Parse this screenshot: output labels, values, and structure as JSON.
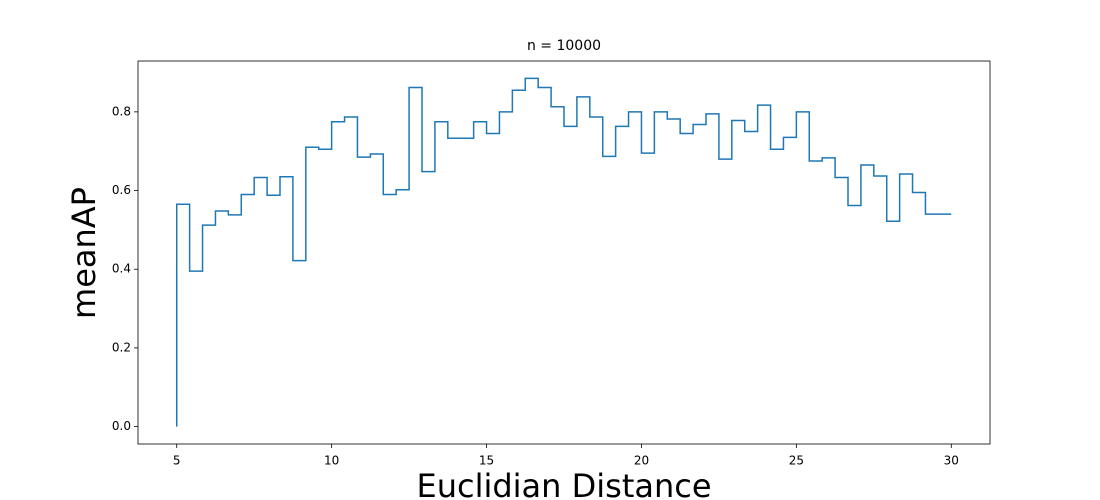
{
  "chart_data": {
    "type": "step",
    "where": "pre",
    "title": "n = 10000",
    "x_label": "Euclidian Distance",
    "y_label": "meanAP",
    "color": "#1f77b4",
    "x": [
      5,
      5.4167,
      5.8333,
      6.25,
      6.6667,
      7.0833,
      7.5,
      7.9167,
      8.3333,
      8.75,
      9.1667,
      9.5833,
      10,
      10.4167,
      10.8333,
      11.25,
      11.6667,
      12.0833,
      12.5,
      12.9167,
      13.3333,
      13.75,
      14.1667,
      14.5833,
      15,
      15.4167,
      15.8333,
      16.25,
      16.6667,
      17.0833,
      17.5,
      17.9167,
      18.3333,
      18.75,
      19.1667,
      19.5833,
      20,
      20.4167,
      20.8333,
      21.25,
      21.6667,
      22.0833,
      22.5,
      22.9167,
      23.3333,
      23.75,
      24.1667,
      24.5833,
      25,
      25.4167,
      25.8333,
      26.25,
      26.6667,
      27.0833,
      27.5,
      27.9167,
      28.3333,
      28.75,
      29.1667,
      29.5833,
      30
    ],
    "values": [
      0,
      0.565,
      0.395,
      0.512,
      0.548,
      0.538,
      0.59,
      0.633,
      0.588,
      0.635,
      0.422,
      0.71,
      0.705,
      0.775,
      0.787,
      0.685,
      0.693,
      0.59,
      0.602,
      0.862,
      0.648,
      0.775,
      0.733,
      0.733,
      0.775,
      0.745,
      0.8,
      0.855,
      0.885,
      0.862,
      0.813,
      0.763,
      0.838,
      0.787,
      0.687,
      0.763,
      0.8,
      0.695,
      0.8,
      0.782,
      0.745,
      0.768,
      0.795,
      0.68,
      0.778,
      0.75,
      0.817,
      0.705,
      0.735,
      0.8,
      0.675,
      0.683,
      0.633,
      0.562,
      0.665,
      0.637,
      0.522,
      0.642,
      0.595,
      0.54,
      0.54
    ],
    "xlim": [
      3.75,
      31.25
    ],
    "ylim": [
      -0.0443,
      0.9293
    ],
    "xticks": [
      5,
      10,
      15,
      20,
      25,
      30
    ],
    "yticks": [
      {
        "value": 0,
        "label": "0.0"
      },
      0.2,
      0.4,
      0.6,
      0.8
    ]
  }
}
